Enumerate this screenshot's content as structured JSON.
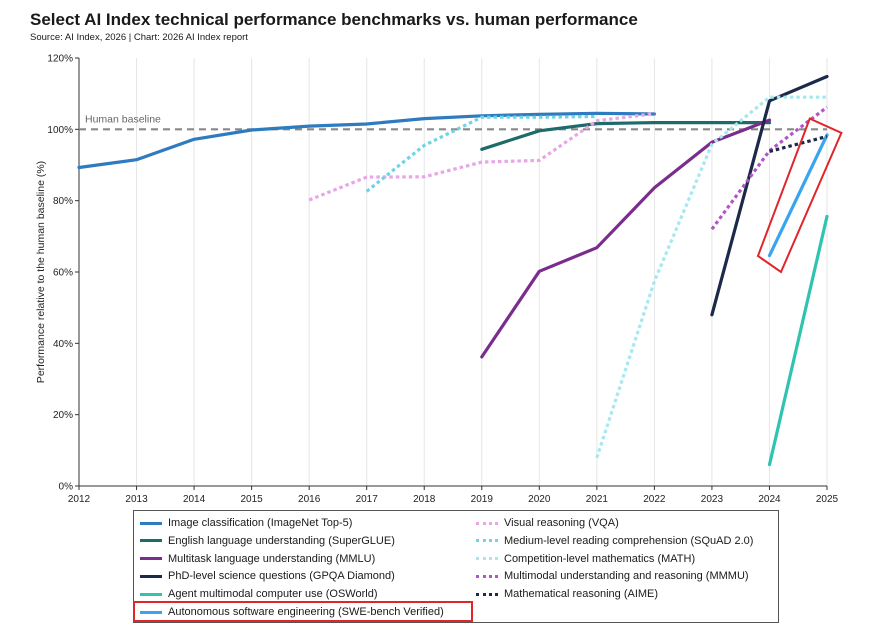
{
  "header": {
    "title": "Select AI Index technical performance benchmarks vs. human performance",
    "subtitle": "Source: AI Index, 2026 | Chart: 2026 AI Index report"
  },
  "chart_data": {
    "type": "line",
    "title": "Select AI Index technical performance benchmarks vs. human performance",
    "ylabel": "Performance relative to the human baseline (%)",
    "xlabel": "",
    "x_ticks": [
      "2012",
      "2013",
      "2014",
      "2015",
      "2016",
      "2017",
      "2018",
      "2019",
      "2020",
      "2021",
      "2022",
      "2023",
      "2024",
      "2025"
    ],
    "y_ticks": [
      "0%",
      "20%",
      "40%",
      "60%",
      "80%",
      "100%",
      "120%"
    ],
    "xlim": [
      2012,
      2025
    ],
    "ylim": [
      0,
      120
    ],
    "grid": "vertical",
    "legend_placement": "bottom",
    "baseline": {
      "label": "Human baseline",
      "value": 100
    },
    "series": [
      {
        "name": "Image classification (ImageNet Top-5)",
        "color": "#2f7bbf",
        "style": "solid",
        "x": [
          2012,
          2013,
          2014,
          2015,
          2016,
          2017,
          2018,
          2019,
          2020,
          2021,
          2022
        ],
        "y": [
          89.3,
          91.5,
          97.2,
          99.8,
          100.9,
          101.5,
          103.0,
          103.8,
          104.2,
          104.5,
          104.3
        ]
      },
      {
        "name": "English language understanding (SuperGLUE)",
        "color": "#1d6b6b",
        "style": "solid",
        "x": [
          2019,
          2020,
          2021,
          2022,
          2023,
          2024
        ],
        "y": [
          94.4,
          99.6,
          101.6,
          101.9,
          101.9,
          101.9
        ]
      },
      {
        "name": "Multitask language understanding (MMLU)",
        "color": "#7b2d8e",
        "style": "solid",
        "x": [
          2019,
          2020,
          2021,
          2022,
          2023,
          2024
        ],
        "y": [
          36.2,
          60.2,
          66.8,
          83.6,
          96.4,
          102.6
        ]
      },
      {
        "name": "PhD-level science questions (GPQA Diamond)",
        "color": "#1b2a4a",
        "style": "solid",
        "x": [
          2023,
          2024,
          2025
        ],
        "y": [
          48.0,
          108.0,
          114.8
        ]
      },
      {
        "name": "Agent multimodal computer use (OSWorld)",
        "color": "#2fc3b0",
        "style": "solid",
        "x": [
          2024,
          2025
        ],
        "y": [
          6.0,
          75.6
        ]
      },
      {
        "name": "Autonomous software engineering (SWE-bench Verified)",
        "color": "#3aa4f0",
        "style": "solid",
        "x": [
          2024,
          2025
        ],
        "y": [
          64.6,
          98.4
        ]
      },
      {
        "name": "Visual reasoning (VQA)",
        "color": "#e8a6e6",
        "style": "dotted",
        "x": [
          2016,
          2017,
          2018,
          2019,
          2020,
          2021,
          2022
        ],
        "y": [
          80.2,
          86.6,
          86.7,
          90.8,
          91.3,
          102.4,
          104.4
        ]
      },
      {
        "name": "Medium-level reading comprehension (SQuAD 2.0)",
        "color": "#6fd4e6",
        "style": "dotted",
        "x": [
          2017,
          2018,
          2019,
          2020,
          2021
        ],
        "y": [
          82.6,
          95.5,
          103.4,
          103.4,
          103.6
        ]
      },
      {
        "name": "Competition-level mathematics (MATH)",
        "color": "#a6e8ee",
        "style": "dotted",
        "x": [
          2021,
          2022,
          2023,
          2024,
          2025
        ],
        "y": [
          7.9,
          57.4,
          95.8,
          109.0,
          109.0
        ]
      },
      {
        "name": "Multimodal understanding and reasoning (MMMU)",
        "color": "#b255c6",
        "style": "dotted",
        "x": [
          2023,
          2024,
          2025
        ],
        "y": [
          72.0,
          94.0,
          106.2
        ]
      },
      {
        "name": "Mathematical reasoning (AIME)",
        "color": "#1b2a4a",
        "style": "dotted",
        "x": [
          2024,
          2025
        ],
        "y": [
          93.8,
          98.0
        ]
      }
    ]
  },
  "colors": {
    "highlight": "#e0262b",
    "grid": "#e6e6e6",
    "baseline": "#888888"
  },
  "legend": {
    "left_column": [
      "Image classification (ImageNet Top-5)",
      "English language understanding (SuperGLUE)",
      "Multitask language understanding (MMLU)",
      "PhD-level science questions (GPQA Diamond)",
      "Agent multimodal computer use (OSWorld)",
      "Autonomous software engineering (SWE-bench Verified)"
    ],
    "right_column": [
      "Visual reasoning (VQA)",
      "Medium-level reading comprehension (SQuAD 2.0)",
      "Competition-level mathematics (MATH)",
      "Multimodal understanding and reasoning (MMMU)",
      "Mathematical reasoning (AIME)"
    ],
    "highlighted": "Autonomous software engineering (SWE-bench Verified)"
  }
}
